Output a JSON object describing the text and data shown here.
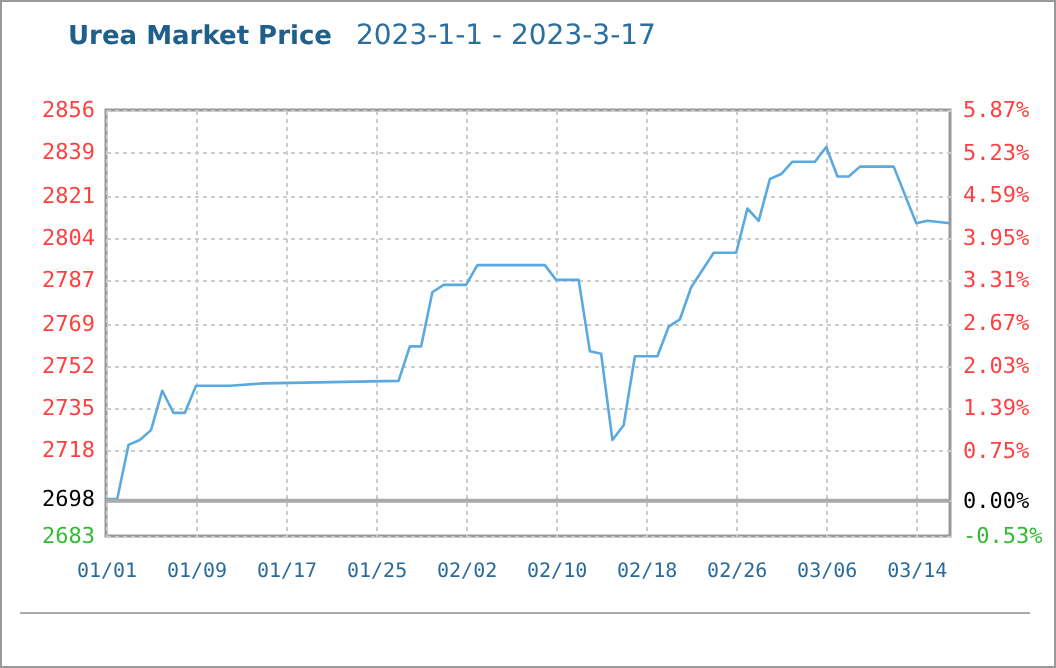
{
  "chart_data": {
    "type": "line",
    "title": "Urea Market Price",
    "subtitle": "2023-1-1 - 2023-3-17",
    "x": [
      "2023-01-01",
      "2023-01-02",
      "2023-01-03",
      "2023-01-04",
      "2023-01-05",
      "2023-01-06",
      "2023-01-07",
      "2023-01-08",
      "2023-01-09",
      "2023-01-12",
      "2023-01-15",
      "2023-01-27",
      "2023-01-28",
      "2023-01-29",
      "2023-01-30",
      "2023-01-31",
      "2023-02-02",
      "2023-02-03",
      "2023-02-09",
      "2023-02-10",
      "2023-02-12",
      "2023-02-13",
      "2023-02-14",
      "2023-02-15",
      "2023-02-16",
      "2023-02-17",
      "2023-02-19",
      "2023-02-20",
      "2023-02-21",
      "2023-02-22",
      "2023-02-24",
      "2023-02-26",
      "2023-02-27",
      "2023-02-28",
      "2023-03-01",
      "2023-03-02",
      "2023-03-03",
      "2023-03-05",
      "2023-03-06",
      "2023-03-07",
      "2023-03-08",
      "2023-03-09",
      "2023-03-12",
      "2023-03-14",
      "2023-03-15",
      "2023-03-17"
    ],
    "series": [
      {
        "color": "#5aaae0",
        "values": [
          2698,
          2698,
          2720,
          2722,
          2726,
          2742,
          2733,
          2733,
          2744,
          2744,
          2745,
          2746,
          2760,
          2760,
          2782,
          2785,
          2785,
          2793,
          2793,
          2787,
          2787,
          2758,
          2757,
          2722,
          2728,
          2756,
          2756,
          2768,
          2771,
          2784,
          2798,
          2798,
          2816,
          2811,
          2828,
          2830,
          2835,
          2835,
          2841,
          2829,
          2829,
          2833,
          2833,
          2810,
          2811,
          2810
        ]
      }
    ],
    "xlim": [
      "2023-01-01",
      "2023-03-17"
    ],
    "xticks": [
      {
        "value": "2023-01-01",
        "label": "01/01"
      },
      {
        "value": "2023-01-09",
        "label": "01/09"
      },
      {
        "value": "2023-01-17",
        "label": "01/17"
      },
      {
        "value": "2023-01-25",
        "label": "01/25"
      },
      {
        "value": "2023-02-02",
        "label": "02/02"
      },
      {
        "value": "2023-02-10",
        "label": "02/10"
      },
      {
        "value": "2023-02-18",
        "label": "02/18"
      },
      {
        "value": "2023-02-26",
        "label": "02/26"
      },
      {
        "value": "2023-03-06",
        "label": "03/06"
      },
      {
        "value": "2023-03-14",
        "label": "03/14"
      }
    ],
    "ylim": [
      2683,
      2856
    ],
    "yticks": [
      2856,
      2839,
      2821,
      2804,
      2787,
      2769,
      2752,
      2735,
      2718,
      2698,
      2683
    ],
    "y2lim": [
      -0.53,
      5.87
    ],
    "y2ticks": [
      {
        "value": 5.87,
        "label": "5.87%"
      },
      {
        "value": 5.23,
        "label": "5.23%"
      },
      {
        "value": 4.59,
        "label": "4.59%"
      },
      {
        "value": 3.95,
        "label": "3.95%"
      },
      {
        "value": 3.31,
        "label": "3.31%"
      },
      {
        "value": 2.67,
        "label": "2.67%"
      },
      {
        "value": 2.03,
        "label": "2.03%"
      },
      {
        "value": 1.39,
        "label": "1.39%"
      },
      {
        "value": 0.75,
        "label": "0.75%"
      },
      {
        "value": 0,
        "label": "0.00%"
      },
      {
        "value": -0.53,
        "label": "-0.53%"
      }
    ],
    "ref_lines": [
      {
        "axis": "y2",
        "value": 0,
        "color": "#aaaaaa"
      }
    ],
    "grid": true,
    "line_style": "solid"
  }
}
